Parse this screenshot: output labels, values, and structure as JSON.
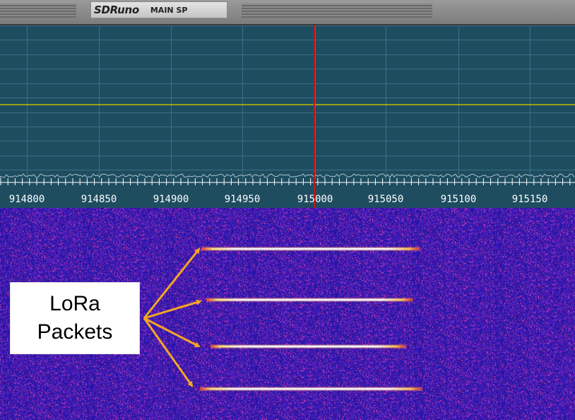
{
  "window": {
    "app_name": "SDRuno",
    "window_name": "MAIN SP"
  },
  "spectrum": {
    "frequency_labels": [
      "914800",
      "914850",
      "914900",
      "914950",
      "915000",
      "915050",
      "915100",
      "915150"
    ],
    "colors": {
      "background": "#1e4d60",
      "grid": "#3b6f86",
      "level_line": "#c9b800",
      "center_marker": "#c0151a",
      "scale_text": "#ffffff"
    }
  },
  "waterfall": {
    "colors": {
      "noise_base": "#2a1aa6",
      "packet": "#ffffff"
    },
    "packets": 4
  },
  "annotation": {
    "line1": "LoRa",
    "line2": "Packets",
    "arrow_color": "#f5a623"
  }
}
